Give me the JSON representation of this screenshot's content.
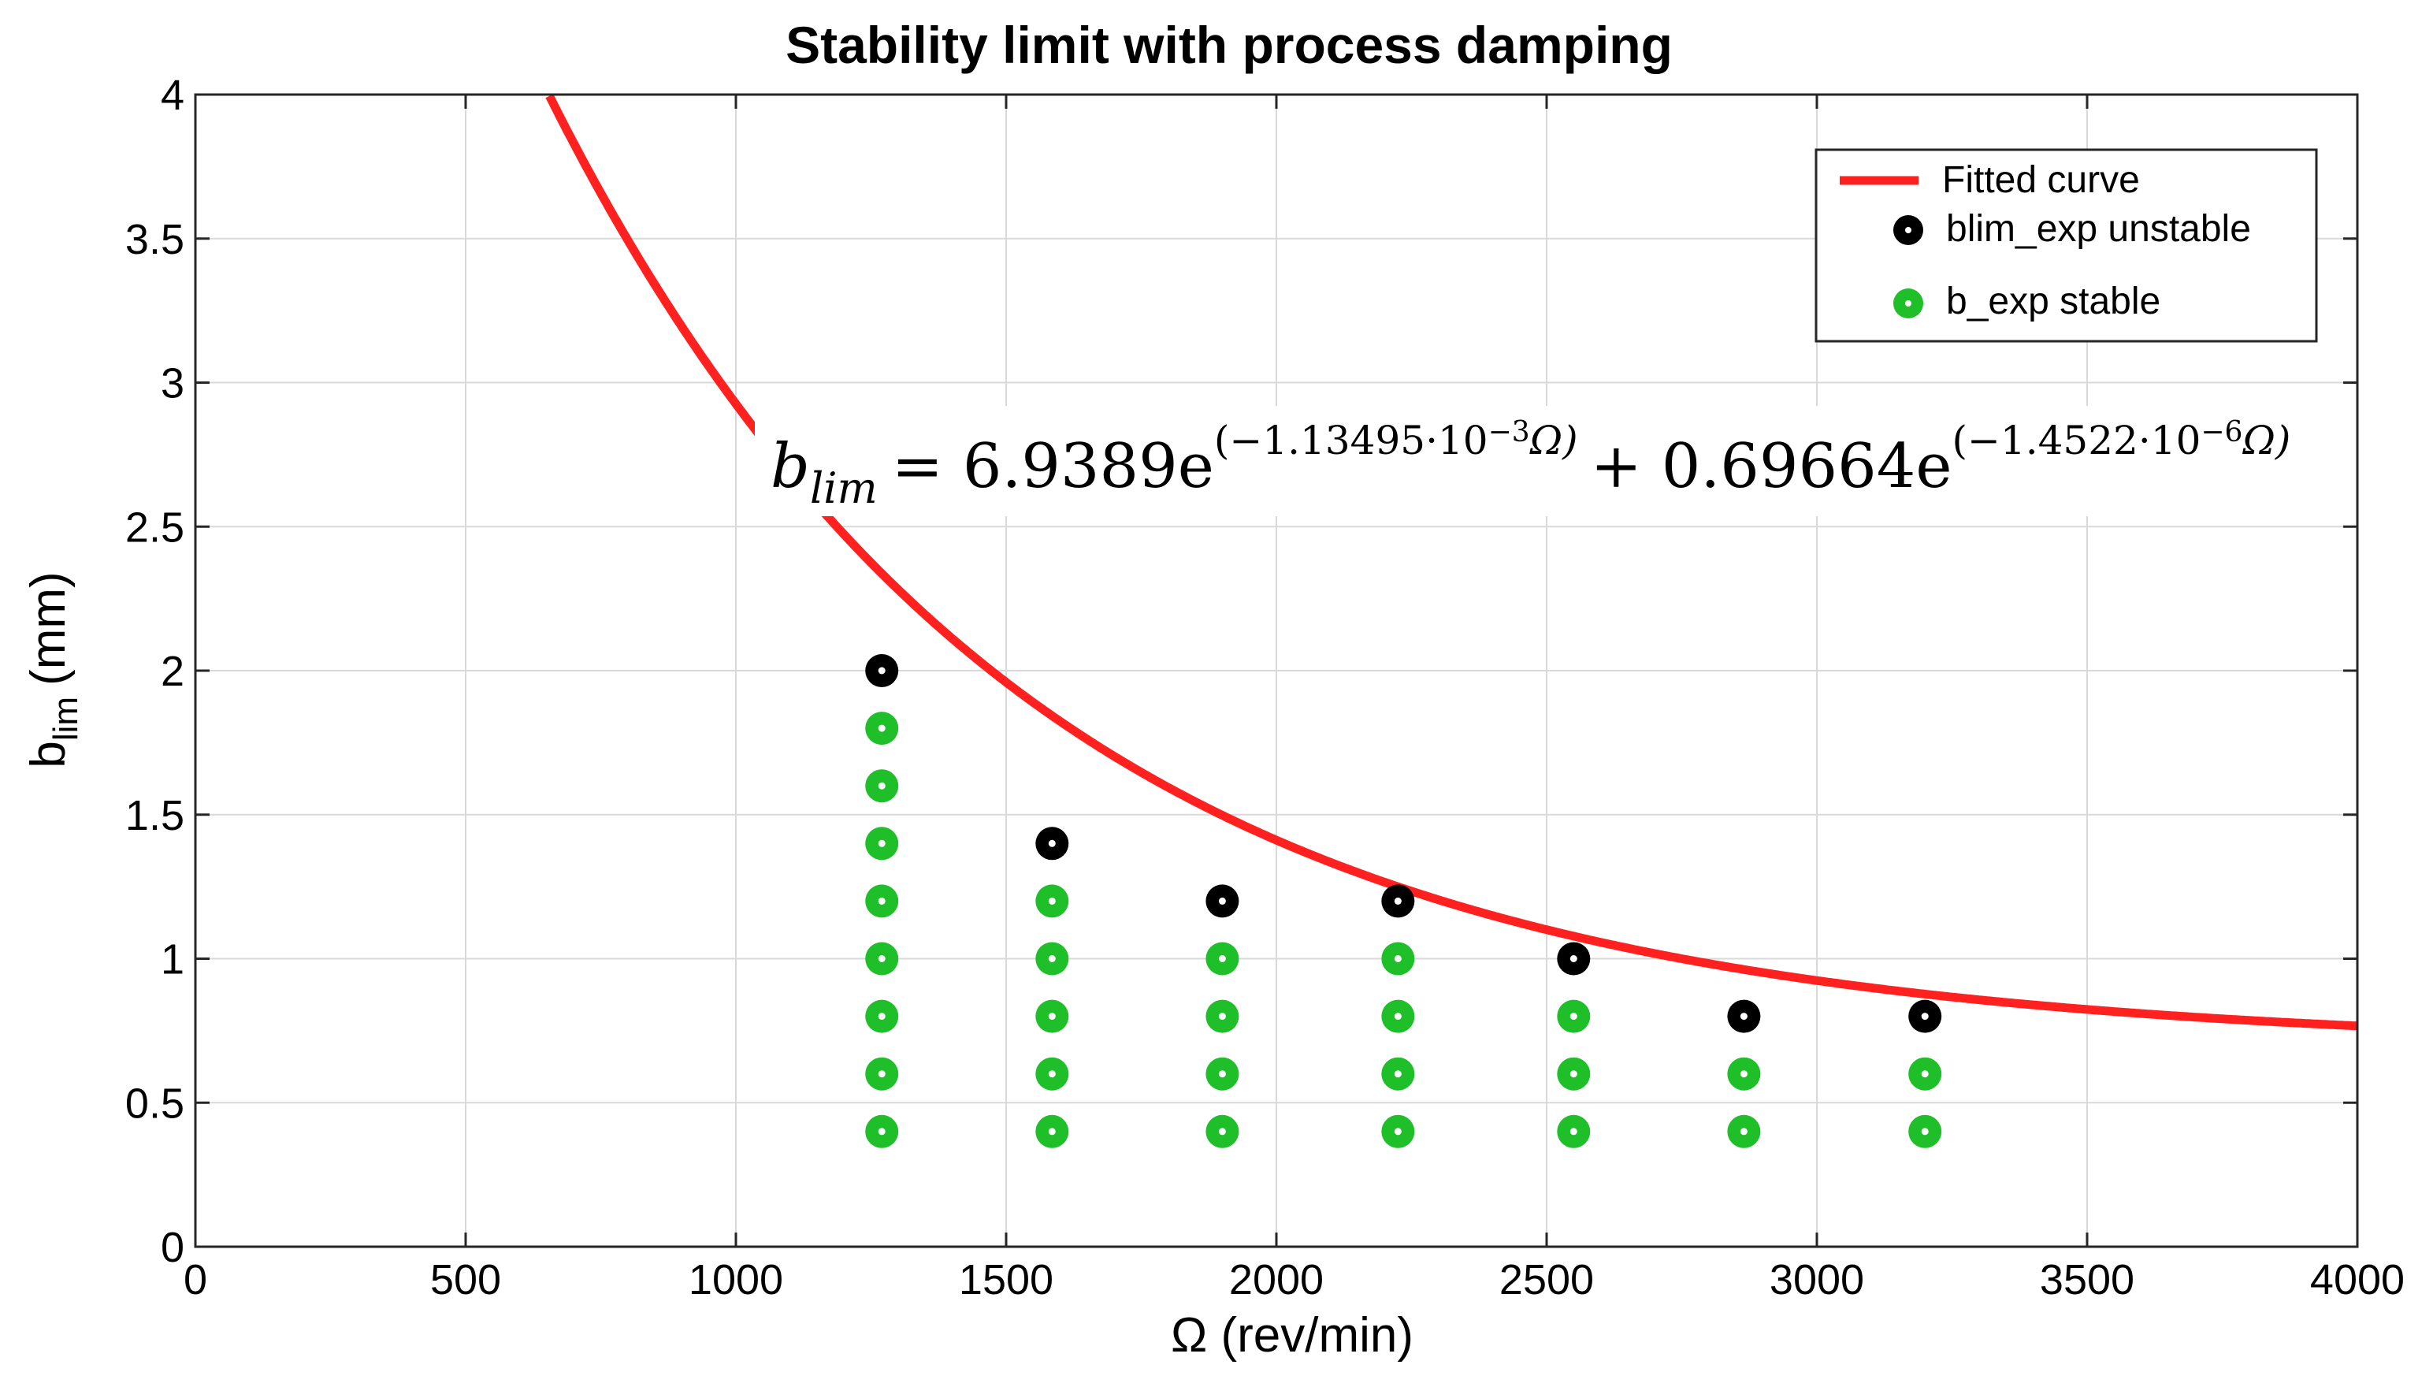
{
  "chart_data": {
    "type": "line",
    "title": "Stability limit with process damping",
    "xlabel": "Ω (rev/min)",
    "ylabel_main": "b",
    "ylabel_sub": "lim",
    "ylabel_unit": "(mm)",
    "xlim": [
      0,
      4000
    ],
    "ylim": [
      0,
      4
    ],
    "xticks": [
      0,
      500,
      1000,
      1500,
      2000,
      2500,
      3000,
      3500,
      4000
    ],
    "yticks": [
      0,
      0.5,
      1,
      1.5,
      2,
      2.5,
      3,
      3.5,
      4
    ],
    "xtick_labels": [
      "0",
      "500",
      "1000",
      "1500",
      "2000",
      "2500",
      "3000",
      "3500",
      "4000"
    ],
    "ytick_labels": [
      "0",
      "0.5",
      "1",
      "1.5",
      "2",
      "2.5",
      "3",
      "3.5",
      "4"
    ],
    "grid": true,
    "legend_position": "top-right",
    "fitted_curve": {
      "name": "Fitted curve",
      "color": "#ff2020",
      "a1": 6.9389,
      "k1": -0.00113495,
      "a2": 0.69664,
      "k2": -1.4522e-06,
      "x_range": [
        0,
        4000
      ]
    },
    "series": [
      {
        "name": "blim_exp unstable",
        "color": "#000000",
        "points": [
          [
            1270,
            2.0
          ],
          [
            1585,
            1.4
          ],
          [
            1900,
            1.2
          ],
          [
            2225,
            1.2
          ],
          [
            2550,
            1.0
          ],
          [
            2865,
            0.8
          ],
          [
            3200,
            0.8
          ]
        ]
      },
      {
        "name": "b_exp stable",
        "color": "#1fbf2a",
        "points": [
          [
            1270,
            1.8
          ],
          [
            1270,
            1.6
          ],
          [
            1270,
            1.4
          ],
          [
            1270,
            1.2
          ],
          [
            1270,
            1.0
          ],
          [
            1270,
            0.8
          ],
          [
            1270,
            0.6
          ],
          [
            1270,
            0.4
          ],
          [
            1585,
            1.2
          ],
          [
            1585,
            1.0
          ],
          [
            1585,
            0.8
          ],
          [
            1585,
            0.6
          ],
          [
            1585,
            0.4
          ],
          [
            1900,
            1.0
          ],
          [
            1900,
            0.8
          ],
          [
            1900,
            0.6
          ],
          [
            1900,
            0.4
          ],
          [
            2225,
            1.0
          ],
          [
            2225,
            0.8
          ],
          [
            2225,
            0.6
          ],
          [
            2225,
            0.4
          ],
          [
            2550,
            0.8
          ],
          [
            2550,
            0.6
          ],
          [
            2550,
            0.4
          ],
          [
            2865,
            0.6
          ],
          [
            2865,
            0.4
          ],
          [
            3200,
            0.6
          ],
          [
            3200,
            0.4
          ]
        ]
      }
    ],
    "equation": {
      "lhs": "b",
      "lhs_sub": "lim",
      "coef1": "= 6.9389e",
      "exp1": "(−1.13495·10",
      "exp1_pow": "−3",
      "exp1_tail": "Ω)",
      "coef2": "+ 0.69664e",
      "exp2": "(−1.4522·10",
      "exp2_pow": "−6",
      "exp2_tail": "Ω)"
    }
  }
}
